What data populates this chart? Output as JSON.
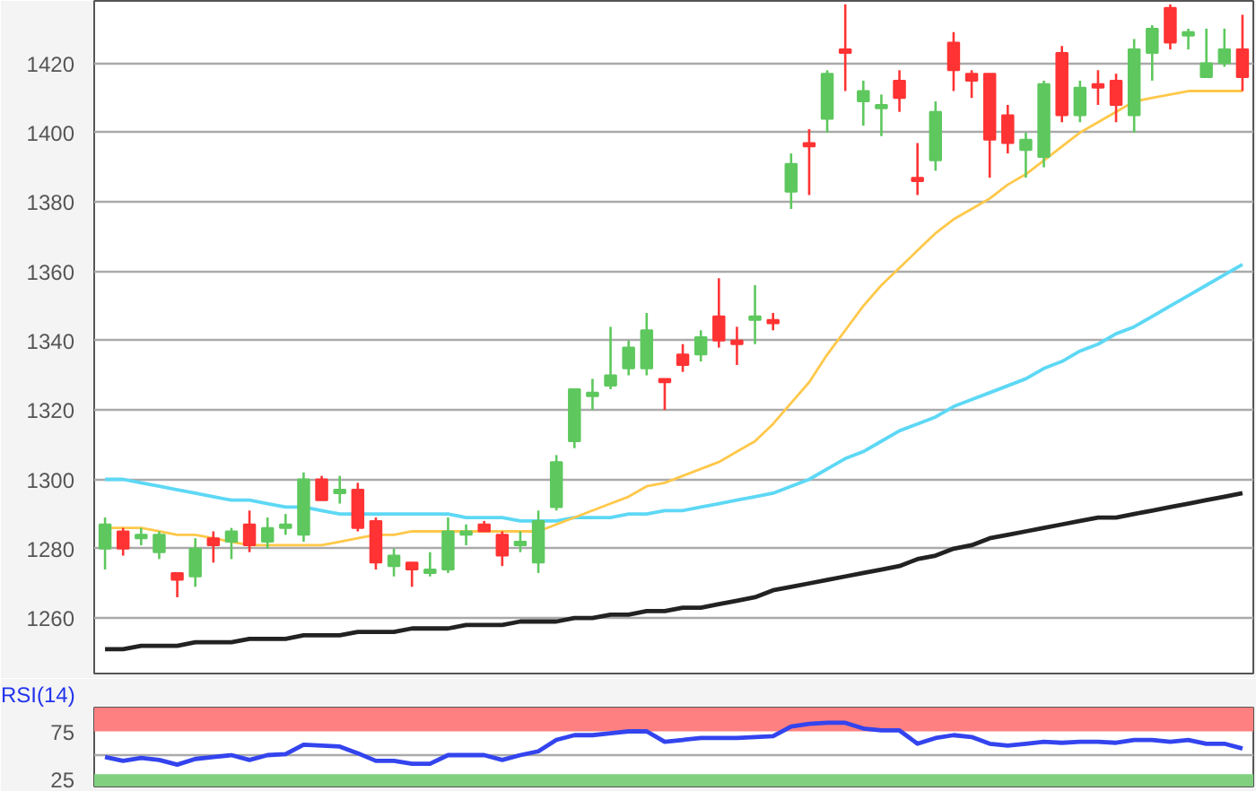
{
  "chart_data": [
    {
      "type": "candlestick",
      "categories": [
        null,
        null,
        null,
        null,
        null,
        null,
        null,
        null,
        null,
        null,
        null,
        null,
        null,
        null,
        null,
        null,
        null,
        null,
        null,
        null,
        null,
        null,
        null,
        null,
        null,
        null,
        null,
        null,
        null,
        null,
        null,
        null,
        null,
        null,
        null,
        null,
        null,
        null,
        null,
        null,
        null,
        null,
        null,
        null,
        null,
        null,
        null,
        null,
        null,
        null,
        null,
        null,
        null,
        null,
        null,
        null,
        null,
        null,
        null,
        null,
        null,
        null,
        null,
        null
      ],
      "ohlc": [
        [
          1280,
          1289,
          1274,
          1287
        ],
        [
          1285,
          1286,
          1278,
          1280
        ],
        [
          1283,
          1286,
          1281,
          1284
        ],
        [
          1279,
          1285,
          1277,
          1284
        ],
        [
          1273,
          1273,
          1266,
          1271
        ],
        [
          1272,
          1283,
          1269,
          1280
        ],
        [
          1283,
          1285,
          1276,
          1281
        ],
        [
          1282,
          1286,
          1277,
          1285
        ],
        [
          1287,
          1291,
          1279,
          1281
        ],
        [
          1282,
          1289,
          1280,
          1286
        ],
        [
          1286,
          1290,
          1284,
          1287
        ],
        [
          1284,
          1302,
          1282,
          1300
        ],
        [
          1300,
          1301,
          1294,
          1294
        ],
        [
          1296,
          1301,
          1293,
          1297
        ],
        [
          1297,
          1299,
          1285,
          1286
        ],
        [
          1288,
          1289,
          1274,
          1276
        ],
        [
          1275,
          1280,
          1272,
          1278
        ],
        [
          1276,
          1276,
          1269,
          1274
        ],
        [
          1273,
          1279,
          1272,
          1274
        ],
        [
          1274,
          1289,
          1273,
          1285
        ],
        [
          1284,
          1287,
          1281,
          1285
        ],
        [
          1287,
          1288,
          1285,
          1285
        ],
        [
          1284,
          1285,
          1275,
          1278
        ],
        [
          1281,
          1285,
          1279,
          1282
        ],
        [
          1276,
          1291,
          1273,
          1288
        ],
        [
          1292,
          1307,
          1291,
          1305
        ],
        [
          1311,
          1326,
          1309,
          1326
        ],
        [
          1324,
          1329,
          1320,
          1325
        ],
        [
          1327,
          1344,
          1326,
          1330
        ],
        [
          1332,
          1340,
          1330,
          1338
        ],
        [
          1332,
          1348,
          1330,
          1343
        ],
        [
          1329,
          1329,
          1320,
          1328
        ],
        [
          1336,
          1339,
          1331,
          1333
        ],
        [
          1336,
          1343,
          1334,
          1341
        ],
        [
          1347,
          1358,
          1338,
          1340
        ],
        [
          1340,
          1344,
          1333,
          1339
        ],
        [
          1346,
          1356,
          1339,
          1347
        ],
        [
          1346,
          1348,
          1343,
          1345
        ],
        [
          1383,
          1394,
          1378,
          1391
        ],
        [
          1397,
          1401,
          1382,
          1396
        ],
        [
          1404,
          1418,
          1400,
          1417
        ],
        [
          1424,
          1437,
          1412,
          1423
        ],
        [
          1409,
          1415,
          1402,
          1412
        ],
        [
          1407,
          1411,
          1399,
          1408
        ],
        [
          1415,
          1418,
          1406,
          1410
        ],
        [
          1387,
          1397,
          1382,
          1386
        ],
        [
          1392,
          1409,
          1389,
          1406
        ],
        [
          1426,
          1429,
          1412,
          1418
        ],
        [
          1417,
          1418,
          1410,
          1415
        ],
        [
          1417,
          1417,
          1387,
          1398
        ],
        [
          1405,
          1408,
          1394,
          1397
        ],
        [
          1395,
          1400,
          1387,
          1398
        ],
        [
          1393,
          1415,
          1390,
          1414
        ],
        [
          1423,
          1425,
          1403,
          1405
        ],
        [
          1405,
          1415,
          1403,
          1413
        ],
        [
          1414,
          1418,
          1408,
          1413
        ],
        [
          1415,
          1417,
          1403,
          1408
        ],
        [
          1405,
          1427,
          1400,
          1424
        ],
        [
          1423,
          1431,
          1415,
          1430
        ],
        [
          1436,
          1437,
          1424,
          1426
        ],
        [
          1428,
          1430,
          1424,
          1429
        ],
        [
          1416,
          1430,
          1416,
          1420
        ],
        [
          1420,
          1430,
          1419,
          1424
        ],
        [
          1424,
          1434,
          1412,
          1416
        ]
      ],
      "colors": [
        "#5ec85e",
        "#ff3333",
        "#5ec85e",
        "#5ec85e",
        "#ff3333",
        "#5ec85e",
        "#ff3333",
        "#5ec85e",
        "#ff3333",
        "#5ec85e",
        "#5ec85e",
        "#5ec85e",
        "#ff3333",
        "#5ec85e",
        "#ff3333",
        "#ff3333",
        "#5ec85e",
        "#ff3333",
        "#5ec85e",
        "#5ec85e",
        "#5ec85e",
        "#ff3333",
        "#ff3333",
        "#5ec85e",
        "#5ec85e",
        "#5ec85e",
        "#5ec85e",
        "#5ec85e",
        "#5ec85e",
        "#5ec85e",
        "#5ec85e",
        "#ff3333",
        "#ff3333",
        "#5ec85e",
        "#ff3333",
        "#ff3333",
        "#5ec85e",
        "#ff3333",
        "#5ec85e",
        "#ff3333",
        "#5ec85e",
        "#ff3333",
        "#5ec85e",
        "#5ec85e",
        "#ff3333",
        "#ff3333",
        "#5ec85e",
        "#ff3333",
        "#ff3333",
        "#ff3333",
        "#ff3333",
        "#5ec85e",
        "#5ec85e",
        "#ff3333",
        "#5ec85e",
        "#ff3333",
        "#ff3333",
        "#5ec85e",
        "#5ec85e",
        "#ff3333",
        "#5ec85e",
        "#5ec85e",
        "#5ec85e",
        "#ff3333"
      ],
      "series": [
        {
          "type": "line",
          "color": "#222222",
          "values": [
            1251,
            1251,
            1252,
            1252,
            1252,
            1253,
            1253,
            1253,
            1254,
            1254,
            1254,
            1255,
            1255,
            1255,
            1256,
            1256,
            1256,
            1257,
            1257,
            1257,
            1258,
            1258,
            1258,
            1259,
            1259,
            1259,
            1260,
            1260,
            1261,
            1261,
            1262,
            1262,
            1263,
            1263,
            1264,
            1265,
            1266,
            1268,
            1269,
            1270,
            1271,
            1272,
            1273,
            1274,
            1275,
            1277,
            1278,
            1280,
            1281,
            1283,
            1284,
            1285,
            1286,
            1287,
            1288,
            1289,
            1289,
            1290,
            1291,
            1292,
            1293,
            1294,
            1295,
            1296
          ]
        },
        {
          "type": "line",
          "color": "#5dd8f5",
          "values": [
            1300,
            1300,
            1299,
            1298,
            1297,
            1296,
            1295,
            1294,
            1294,
            1293,
            1292,
            1292,
            1291,
            1290,
            1290,
            1290,
            1290,
            1290,
            1290,
            1290,
            1289,
            1289,
            1289,
            1288,
            1288,
            1288,
            1289,
            1289,
            1289,
            1290,
            1290,
            1291,
            1291,
            1292,
            1293,
            1294,
            1295,
            1296,
            1298,
            1300,
            1303,
            1306,
            1308,
            1311,
            1314,
            1316,
            1318,
            1321,
            1323,
            1325,
            1327,
            1329,
            1332,
            1334,
            1337,
            1339,
            1342,
            1344,
            1347,
            1350,
            1353,
            1356,
            1359,
            1362
          ]
        },
        {
          "type": "line",
          "color": "#ffc84a",
          "values": [
            1286,
            1286,
            1286,
            1285,
            1284,
            1284,
            1283,
            1282,
            1281,
            1281,
            1281,
            1281,
            1281,
            1282,
            1283,
            1284,
            1284,
            1285,
            1285,
            1285,
            1285,
            1285,
            1285,
            1285,
            1285,
            1287,
            1289,
            1291,
            1293,
            1295,
            1298,
            1299,
            1301,
            1303,
            1305,
            1308,
            1311,
            1316,
            1322,
            1328,
            1336,
            1343,
            1350,
            1356,
            1361,
            1366,
            1371,
            1375,
            1378,
            1381,
            1385,
            1388,
            1392,
            1396,
            1400,
            1403,
            1406,
            1409,
            1410,
            1411,
            1412,
            1412,
            1412,
            1412
          ]
        }
      ],
      "ylim": [
        1244,
        1438
      ],
      "yticks": [
        1260,
        1280,
        1300,
        1320,
        1340,
        1360,
        1380,
        1400,
        1420
      ],
      "grid": "y",
      "tick_labels": "y"
    },
    {
      "type": "line",
      "title": "RSI(14)",
      "categories": [
        null,
        null,
        null,
        null,
        null,
        null,
        null,
        null,
        null,
        null,
        null,
        null,
        null,
        null,
        null,
        null,
        null,
        null,
        null,
        null,
        null,
        null,
        null,
        null,
        null,
        null,
        null,
        null,
        null,
        null,
        null,
        null,
        null,
        null,
        null,
        null,
        null,
        null,
        null,
        null,
        null,
        null,
        null,
        null,
        null,
        null,
        null,
        null,
        null,
        null,
        null,
        null,
        null,
        null,
        null,
        null,
        null,
        null,
        null,
        null,
        null,
        null,
        null,
        null
      ],
      "series": [
        {
          "color": "#3344ee",
          "values": [
            48,
            44,
            47,
            45,
            40,
            46,
            48,
            50,
            45,
            50,
            51,
            61,
            60,
            59,
            52,
            44,
            44,
            41,
            41,
            50,
            50,
            50,
            45,
            50,
            54,
            66,
            71,
            71,
            73,
            75,
            75,
            64,
            66,
            68,
            68,
            68,
            69,
            70,
            80,
            83,
            84,
            84,
            78,
            76,
            76,
            62,
            68,
            71,
            69,
            62,
            60,
            62,
            64,
            63,
            64,
            64,
            63,
            66,
            66,
            64,
            66,
            62,
            62,
            57
          ]
        }
      ],
      "ylim": [
        17,
        100
      ],
      "yticks": [
        25,
        75
      ],
      "tick_labels": "y",
      "bands": [
        {
          "axis": "y",
          "from": 75,
          "to": 100,
          "color": "#ff8080"
        },
        {
          "axis": "y",
          "from": 17,
          "to": 30,
          "color": "#80d080"
        }
      ],
      "ref_lines": [
        {
          "axis": "y",
          "value": 50,
          "color": "#aaaaaa"
        }
      ]
    }
  ]
}
